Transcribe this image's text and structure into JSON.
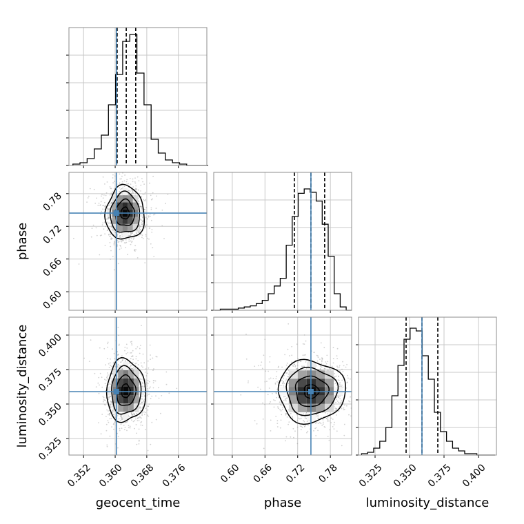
{
  "colors": {
    "truth": "#4682b4",
    "frame": "#8c8c8c",
    "grid": "#c8c8c8",
    "hist": "#000000",
    "quantile": "#000000",
    "point": "#9a9a9a",
    "background": "#ffffff"
  },
  "chart_data": {
    "type": "corner",
    "parameters": [
      "geocent_time",
      "phase",
      "luminosity_distance"
    ],
    "truths": [
      0.3603,
      0.7443,
      0.359
    ],
    "grid": true,
    "ranges": [
      [
        0.3483,
        0.3832
      ],
      [
        0.566,
        0.819
      ],
      [
        0.313,
        0.413
      ]
    ],
    "ticks": [
      {
        "values": [
          0.352,
          0.36,
          0.368,
          0.376
        ],
        "labels": [
          "0.352",
          "0.360",
          "0.368",
          "0.376"
        ]
      },
      {
        "values": [
          0.6,
          0.66,
          0.72,
          0.78
        ],
        "labels": [
          "0.60",
          "0.66",
          "0.72",
          "0.78"
        ]
      },
      {
        "values": [
          0.325,
          0.35,
          0.375,
          0.4
        ],
        "labels": [
          "0.325",
          "0.350",
          "0.375",
          "0.400"
        ]
      }
    ],
    "histograms": [
      {
        "parameter": "geocent_time",
        "bin_edges": [
          0.3493,
          0.3511,
          0.3529,
          0.3547,
          0.3565,
          0.3583,
          0.3601,
          0.3619,
          0.3637,
          0.3655,
          0.3673,
          0.3691,
          0.3709,
          0.3727,
          0.3745,
          0.3763,
          0.3781,
          0.3799,
          0.3817,
          0.3835
        ],
        "counts": [
          1,
          2,
          5,
          12,
          22,
          44,
          66,
          90,
          95,
          67,
          44,
          19,
          9,
          4,
          2,
          1,
          0,
          0,
          0
        ],
        "quantiles": [
          0.3605,
          0.3628,
          0.3652
        ],
        "ymax": 100
      },
      {
        "parameter": "phase",
        "bin_edges": [
          0.567,
          0.578,
          0.589,
          0.6,
          0.611,
          0.622,
          0.633,
          0.644,
          0.655,
          0.666,
          0.677,
          0.688,
          0.699,
          0.71,
          0.721,
          0.732,
          0.743,
          0.754,
          0.765,
          0.776,
          0.787,
          0.798,
          0.809,
          0.819
        ],
        "counts": [
          0,
          1,
          1,
          1,
          2,
          3,
          4,
          6,
          9,
          15,
          22,
          29,
          59,
          85,
          106,
          110,
          107,
          99,
          78,
          49,
          15,
          3,
          0
        ],
        "quantiles": [
          0.714,
          0.7443,
          0.7695
        ],
        "ymax": 125
      },
      {
        "parameter": "luminosity_distance",
        "bin_edges": [
          0.3152,
          0.3196,
          0.324,
          0.3284,
          0.3328,
          0.3372,
          0.3416,
          0.346,
          0.3504,
          0.3548,
          0.3592,
          0.3636,
          0.368,
          0.3724,
          0.3768,
          0.3812,
          0.3856,
          0.39,
          0.3944,
          0.3988,
          0.4032,
          0.4076,
          0.412
        ],
        "counts": [
          1,
          2,
          5,
          10,
          20,
          43,
          65,
          84,
          92,
          90,
          72,
          55,
          31,
          17,
          10,
          5,
          3,
          1,
          1,
          0,
          0,
          0
        ],
        "quantiles": [
          0.3475,
          0.359,
          0.3705
        ],
        "ymax": 100
      }
    ],
    "pairs": [
      {
        "x_param": "geocent_time",
        "y_param": "phase",
        "center": [
          0.3625,
          0.744
        ],
        "sigma": [
          0.0024,
          0.024
        ],
        "contour_scales": [
          0.45,
          1.0,
          1.55,
          2.05
        ]
      },
      {
        "x_param": "geocent_time",
        "y_param": "luminosity_distance",
        "center": [
          0.3627,
          0.3595
        ],
        "sigma": [
          0.0024,
          0.011
        ],
        "contour_scales": [
          0.45,
          1.0,
          1.55,
          2.05
        ]
      },
      {
        "x_param": "phase",
        "y_param": "luminosity_distance",
        "center": [
          0.745,
          0.3592
        ],
        "sigma": [
          0.03,
          0.011
        ],
        "contour_scales": [
          0.45,
          1.0,
          1.55,
          2.05
        ]
      }
    ]
  }
}
